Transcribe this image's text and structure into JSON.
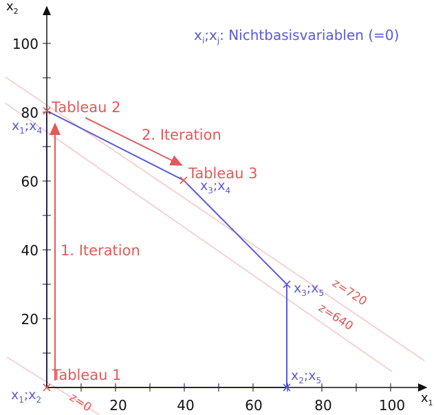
{
  "axes": {
    "x_label": "x",
    "x_sub": "1",
    "y_label": "x",
    "y_sub": "2",
    "x_ticks": [
      "20",
      "40",
      "60",
      "80",
      "100"
    ],
    "y_ticks": [
      "20",
      "40",
      "60",
      "80",
      "100"
    ]
  },
  "legend": {
    "x_i": "x",
    "i": "i",
    "sep": ";",
    "x_j": "x",
    "j": "j",
    "rest": ": Nichtbasisvariablen (=0)"
  },
  "tableaus": [
    "Tableau 1",
    "Tableau 2",
    "Tableau 3"
  ],
  "iterations": [
    "1. Iteration",
    "2. Iteration"
  ],
  "objective_lines": [
    "z=0",
    "z=640",
    "z=720"
  ],
  "vertices": [
    {
      "id": "origin",
      "x": 0,
      "y": 0,
      "a": "x",
      "as": "1",
      "b": "x",
      "bs": "2"
    },
    {
      "id": "top",
      "x": 0,
      "y": 80,
      "a": "x",
      "as": "1",
      "b": "x",
      "bs": "4"
    },
    {
      "id": "mid",
      "x": 40,
      "y": 60,
      "a": "x",
      "as": "3",
      "b": "x",
      "bs": "4"
    },
    {
      "id": "right-upper",
      "x": 70,
      "y": 30,
      "a": "x",
      "as": "3",
      "b": "x",
      "bs": "5"
    },
    {
      "id": "right-lower",
      "x": 70,
      "y": 0,
      "a": "x",
      "as": "2",
      "b": "x",
      "bs": "5"
    }
  ],
  "feasible_region": [
    [
      0,
      0
    ],
    [
      0,
      80
    ],
    [
      40,
      60
    ],
    [
      70,
      30
    ],
    [
      70,
      0
    ]
  ],
  "simplex_path": [
    [
      0,
      0
    ],
    [
      0,
      80
    ],
    [
      40,
      60
    ]
  ],
  "colors": {
    "region": "#5a5ad6",
    "path": "#e05a5a",
    "z_lines": "#f6c8c8",
    "axes": "#111111"
  }
}
